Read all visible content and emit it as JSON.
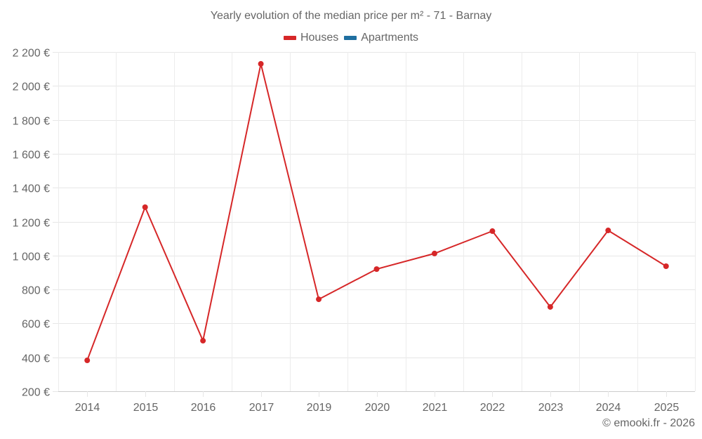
{
  "title": "Yearly evolution of the median price per m² - 71 - Barnay",
  "legend": [
    {
      "label": "Houses",
      "color": "#d62728"
    },
    {
      "label": "Apartments",
      "color": "#1f6fa0"
    }
  ],
  "credit": "© emooki.fr - 2026",
  "chart_data": {
    "type": "line",
    "title": "Yearly evolution of the median price per m² - 71 - Barnay",
    "xlabel": "",
    "ylabel": "",
    "categories": [
      "2014",
      "2015",
      "2016",
      "2017",
      "2019",
      "2020",
      "2021",
      "2022",
      "2023",
      "2024",
      "2025"
    ],
    "series": [
      {
        "name": "Houses",
        "color": "#d62728",
        "values": [
          382,
          1285,
          498,
          2130,
          742,
          920,
          1012,
          1144,
          697,
          1148,
          937
        ]
      },
      {
        "name": "Apartments",
        "color": "#1f6fa0",
        "values": []
      }
    ],
    "ylim": [
      200,
      2200
    ],
    "yticks": [
      200,
      400,
      600,
      800,
      1000,
      1200,
      1400,
      1600,
      1800,
      2000,
      2200
    ],
    "ytick_labels": [
      "200 €",
      "400 €",
      "600 €",
      "800 €",
      "1 000 €",
      "1 200 €",
      "1 400 €",
      "1 600 €",
      "1 800 €",
      "2 000 €",
      "2 200 €"
    ],
    "grid": true,
    "legend_position": "top"
  }
}
